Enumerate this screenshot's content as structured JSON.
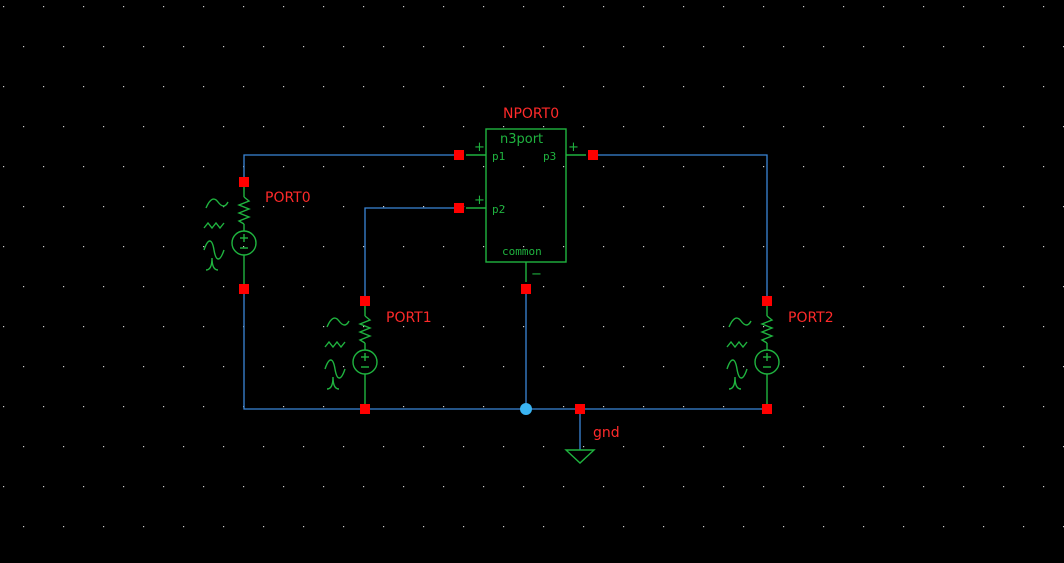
{
  "components": {
    "nport": {
      "instance": "NPORT0",
      "cell": "n3port",
      "pins": [
        "p1",
        "p2",
        "p3",
        "common"
      ],
      "plus": "+",
      "minus": "−"
    },
    "port0": {
      "instance": "PORT0"
    },
    "port1": {
      "instance": "PORT1"
    },
    "port2": {
      "instance": "PORT2"
    },
    "gnd": {
      "label": "gnd"
    }
  },
  "colors": {
    "background": "#000000",
    "wire": "#3a86d8",
    "symbol": "#1fb33f",
    "pin": "#ff0000",
    "label": "#ff2a2a",
    "junction": "#3ab4f2"
  }
}
